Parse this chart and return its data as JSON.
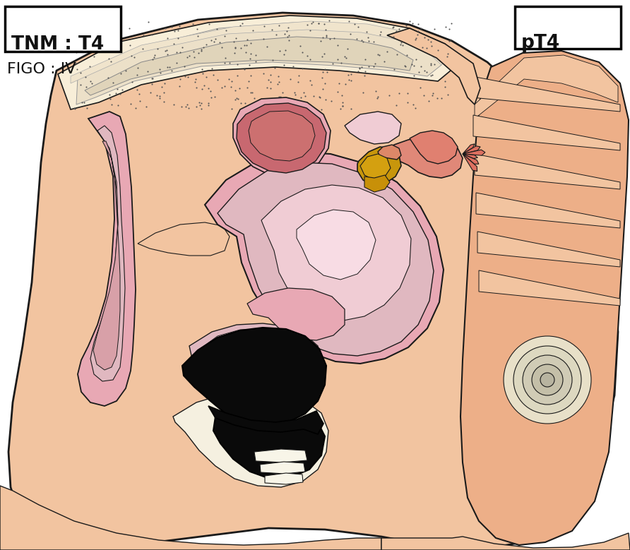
{
  "title_left_box": "TNM : T4",
  "title_left_figo": "FIGO : IV",
  "title_right_box": "pT4",
  "bg_color": "#ffffff",
  "skin_light": "#f2c4a0",
  "skin_medium": "#edaf88",
  "skin_dark": "#e09a70",
  "pink_light": "#f0ccd4",
  "pink_organ": "#e8a8b4",
  "pink_dark": "#d47888",
  "pink_medium": "#e0b8c0",
  "red_organ": "#c86870",
  "red_dark": "#b85858",
  "tumor_color": "#0a0a0a",
  "bone_color": "#e8e0c8",
  "outline_color": "#1a1a1a",
  "yellow_organ": "#c8960c",
  "orange_organ": "#cc6040",
  "white_tissue": "#f0ede0",
  "cream": "#f5f0e0",
  "light_yellow": "#f8f0d0"
}
